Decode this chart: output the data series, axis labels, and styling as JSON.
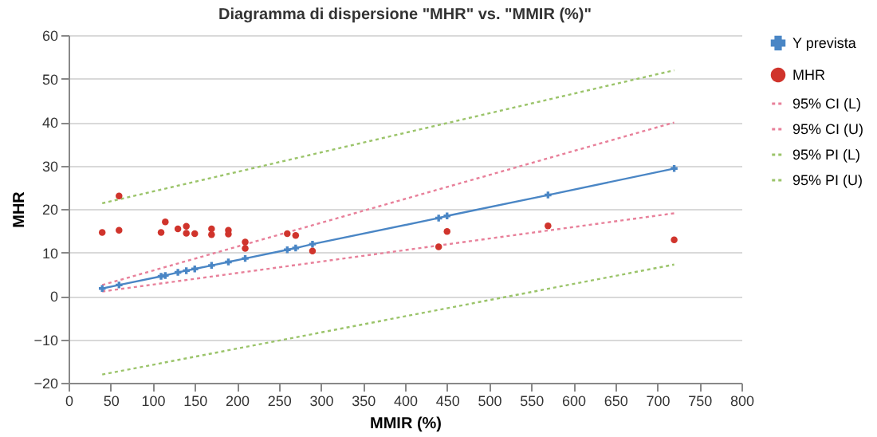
{
  "chart_data": {
    "type": "scatter",
    "title": "Diagramma di dispersione \"MHR\" vs. \"MMIR (%)\"",
    "xlabel": "MMIR (%)",
    "ylabel": "MHR",
    "xlim": [
      0,
      800
    ],
    "xticks": [
      0,
      50,
      100,
      150,
      200,
      250,
      300,
      350,
      400,
      450,
      500,
      550,
      600,
      650,
      700,
      750,
      800
    ],
    "ylim": [
      -20,
      60
    ],
    "yticks": [
      -20,
      -10,
      0,
      10,
      20,
      30,
      40,
      50,
      60
    ],
    "grid": "y",
    "legend": "right",
    "series": [
      {
        "name": "Y prevista",
        "type": "line",
        "color": "#4a86c5",
        "marker": "cross",
        "line_style": "solid",
        "x": [
          40,
          60,
          110,
          115,
          130,
          140,
          150,
          170,
          190,
          210,
          260,
          270,
          290,
          440,
          450,
          570,
          720
        ],
        "values": [
          1.7,
          2.5,
          4.5,
          4.7,
          5.4,
          5.8,
          6.2,
          7.0,
          7.8,
          8.6,
          10.6,
          11.0,
          11.9,
          17.9,
          18.4,
          23.2,
          29.3
        ]
      },
      {
        "name": "MHR",
        "type": "scatter",
        "color": "#d0342c",
        "marker": "circle",
        "x": [
          40,
          60,
          60,
          110,
          115,
          130,
          140,
          140,
          150,
          170,
          170,
          190,
          190,
          210,
          210,
          260,
          270,
          290,
          440,
          450,
          570,
          720
        ],
        "values": [
          14.6,
          23.0,
          15.1,
          14.6,
          17.0,
          15.4,
          16.0,
          14.4,
          14.3,
          15.4,
          14.1,
          15.1,
          14.2,
          12.4,
          10.9,
          14.3,
          13.9,
          10.3,
          11.3,
          14.8,
          16.1,
          12.9
        ]
      },
      {
        "name": "95% CI (L)",
        "type": "line",
        "color": "#e8809a",
        "marker": "none",
        "line_style": "dotted",
        "x": [
          40,
          720
        ],
        "values": [
          1.0,
          19.0
        ]
      },
      {
        "name": "95% CI (U)",
        "type": "line",
        "color": "#e8809a",
        "marker": "none",
        "line_style": "dotted",
        "x": [
          40,
          720
        ],
        "values": [
          2.5,
          39.9
        ]
      },
      {
        "name": "95% PI (L)",
        "type": "line",
        "color": "#9bc46a",
        "marker": "none",
        "line_style": "dotted",
        "x": [
          40,
          720
        ],
        "values": [
          -18.1,
          7.2
        ]
      },
      {
        "name": "95% PI (U)",
        "type": "line",
        "color": "#9bc46a",
        "marker": "none",
        "line_style": "dotted",
        "x": [
          40,
          720
        ],
        "values": [
          21.3,
          51.9
        ]
      }
    ]
  }
}
